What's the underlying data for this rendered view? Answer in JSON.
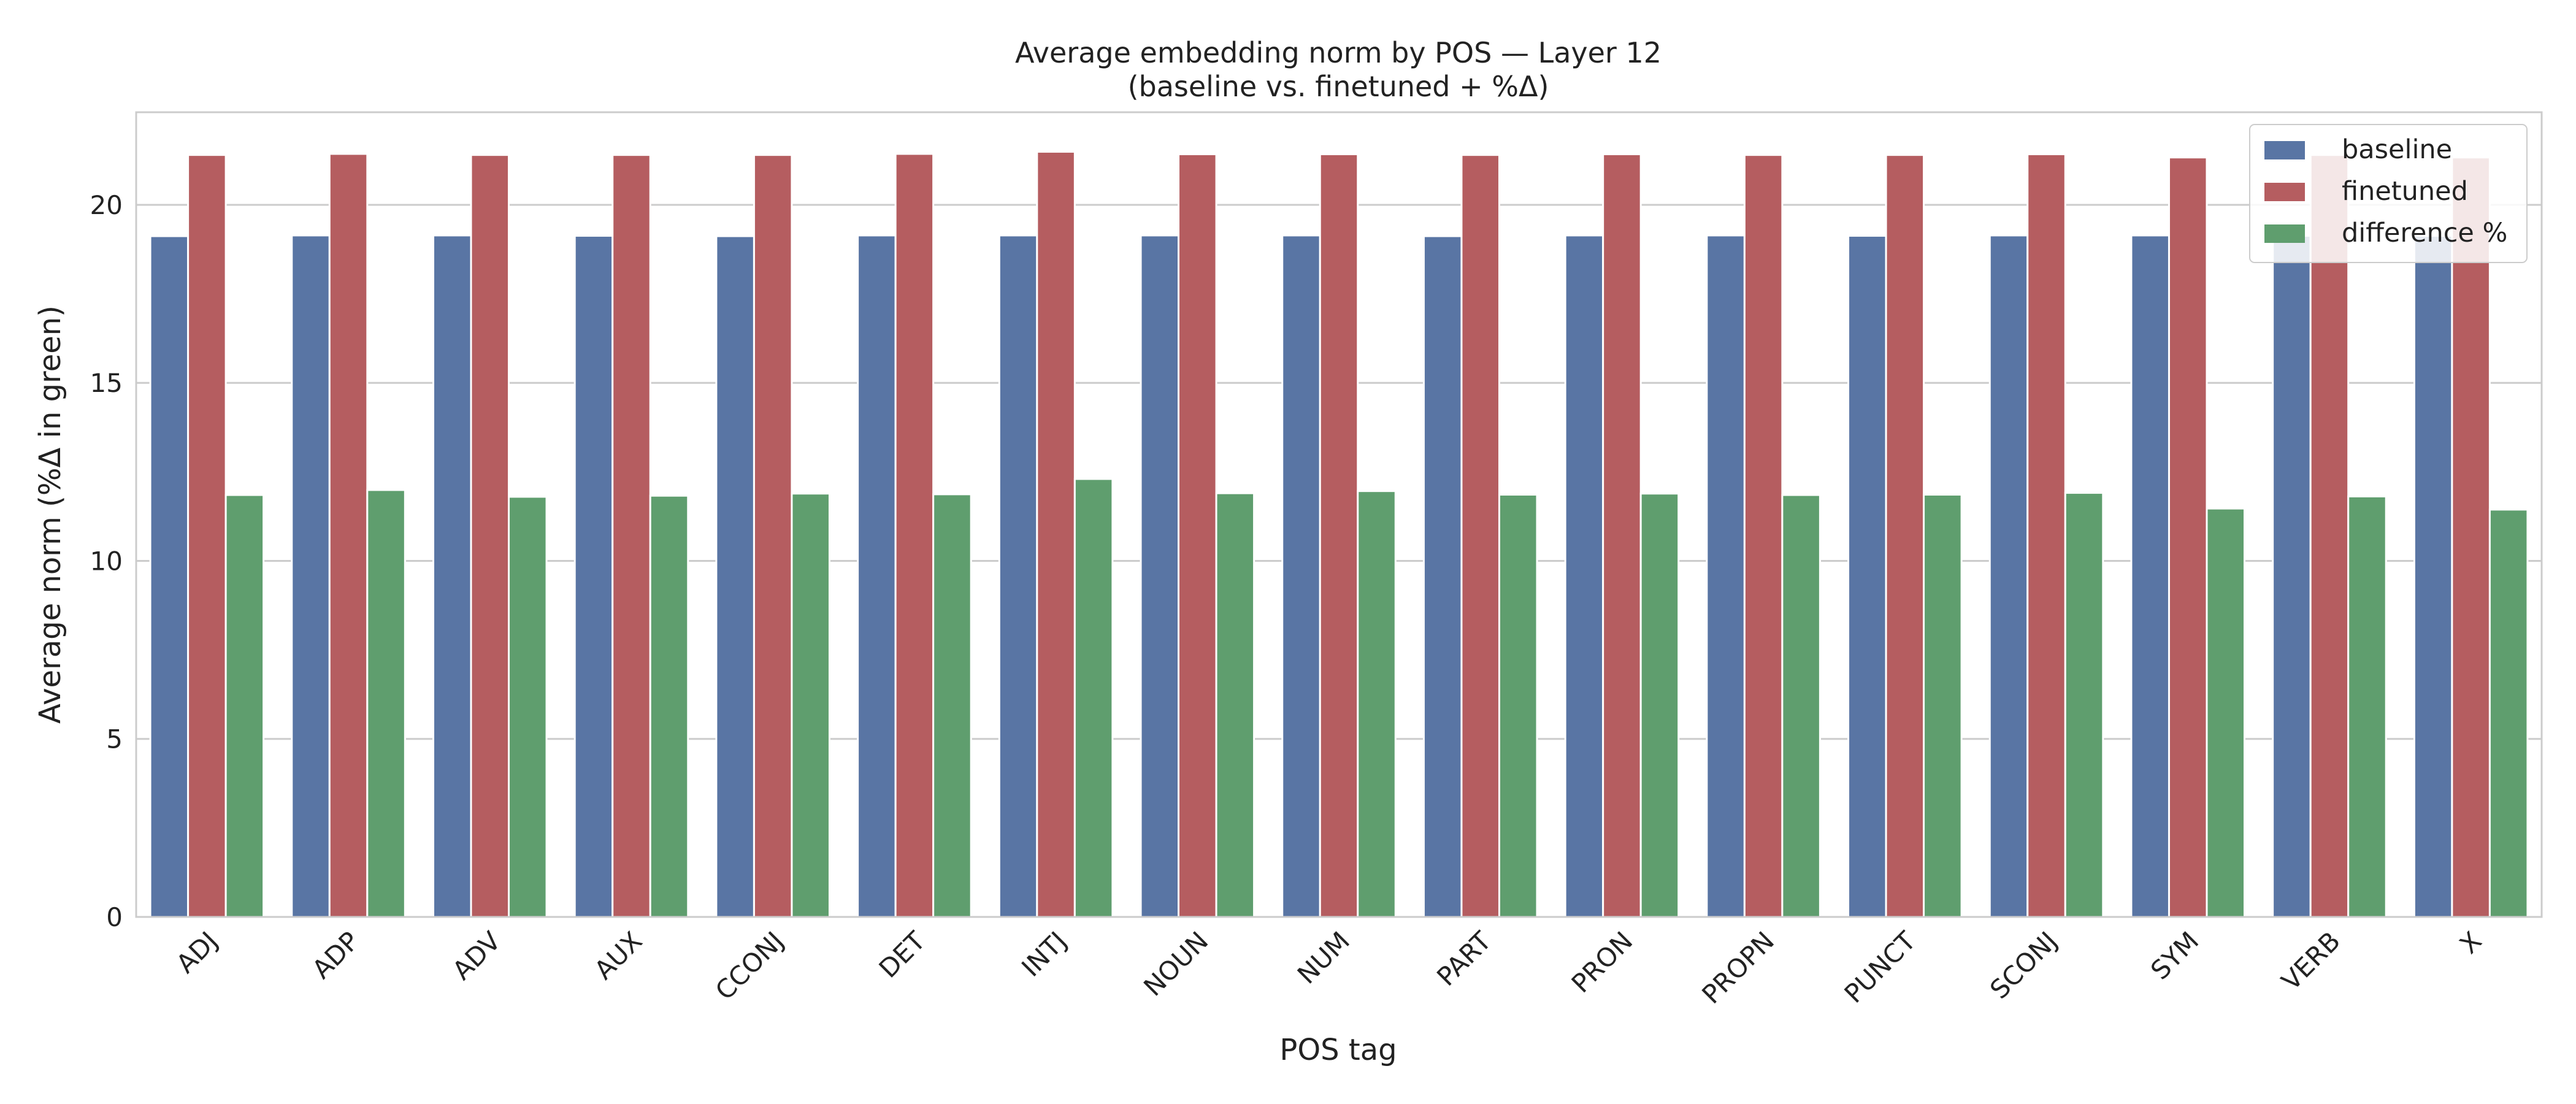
{
  "chart_data": {
    "type": "bar",
    "title": "Average embedding norm by POS — Layer 12",
    "subtitle": "(baseline vs. finetuned + %Δ)",
    "xlabel": "POS tag",
    "ylabel": "Average norm   (%Δ in green)",
    "ylim": [
      0,
      22.6
    ],
    "yticks": [
      0,
      5,
      10,
      15,
      20
    ],
    "grid": "horizontal",
    "legend_position": "top-right",
    "categories": [
      "ADJ",
      "ADP",
      "ADV",
      "AUX",
      "CCONJ",
      "DET",
      "INTJ",
      "NOUN",
      "NUM",
      "PART",
      "PRON",
      "PROPN",
      "PUNCT",
      "SCONJ",
      "SYM",
      "VERB",
      "X"
    ],
    "series": [
      {
        "name": "baseline",
        "color": "#5975a4",
        "values": [
          19.12,
          19.14,
          19.14,
          19.13,
          19.12,
          19.14,
          19.14,
          19.14,
          19.14,
          19.12,
          19.14,
          19.14,
          19.13,
          19.14,
          19.14,
          19.13,
          19.13
        ]
      },
      {
        "name": "finetuned",
        "color": "#b55d60",
        "values": [
          21.4,
          21.43,
          21.4,
          21.4,
          21.4,
          21.43,
          21.49,
          21.42,
          21.42,
          21.4,
          21.42,
          21.4,
          21.4,
          21.42,
          21.33,
          21.4,
          21.33
        ]
      },
      {
        "name": "difference %",
        "color": "#5f9e6e",
        "values": [
          11.85,
          11.99,
          11.8,
          11.83,
          11.89,
          11.87,
          12.3,
          11.9,
          11.96,
          11.86,
          11.89,
          11.85,
          11.86,
          11.91,
          11.47,
          11.81,
          11.44
        ]
      }
    ]
  }
}
